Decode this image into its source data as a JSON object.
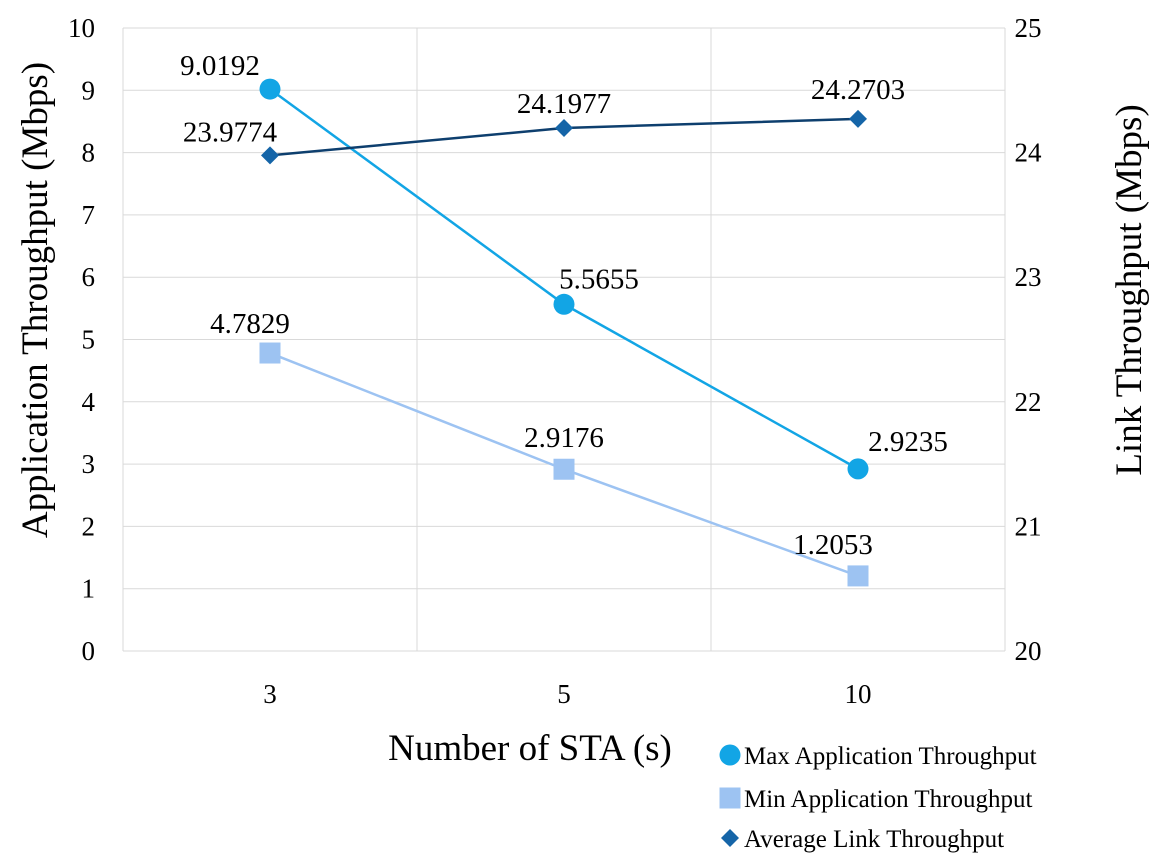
{
  "chart_data": {
    "type": "line",
    "title": "",
    "xlabel": "Number of STA (s)",
    "ylabel_left": "Application Throughput (Mbps)",
    "ylabel_right": "Link Throughput (Mbps)",
    "categories": [
      "3",
      "5",
      "10"
    ],
    "ylim_left": [
      0,
      10
    ],
    "ylim_right": [
      20,
      25
    ],
    "yticks_left": [
      "0",
      "1",
      "2",
      "3",
      "4",
      "5",
      "6",
      "7",
      "8",
      "9",
      "10"
    ],
    "yticks_right": [
      "20",
      "21",
      "22",
      "23",
      "24",
      "25"
    ],
    "grid": true,
    "legend_position": "bottom-right",
    "series": [
      {
        "name": "Max Application Throughput",
        "axis": "left",
        "marker": "circle",
        "color": "#12A5E5",
        "values": [
          9.0192,
          5.5655,
          2.9235
        ],
        "labels": [
          "9.0192",
          "5.5655",
          "2.9235"
        ]
      },
      {
        "name": "Min Application Throughput",
        "axis": "left",
        "marker": "square",
        "color": "#9DC3F2",
        "values": [
          4.7829,
          2.9176,
          1.2053
        ],
        "labels": [
          "4.7829",
          "2.9176",
          "1.2053"
        ]
      },
      {
        "name": "Average Link Throughput",
        "axis": "right",
        "marker": "diamond",
        "color": "#1565A8",
        "line_color": "#0E3F6E",
        "values": [
          23.9774,
          24.1977,
          24.2703
        ],
        "labels": [
          "23.9774",
          "24.1977",
          "24.2703"
        ]
      }
    ]
  }
}
